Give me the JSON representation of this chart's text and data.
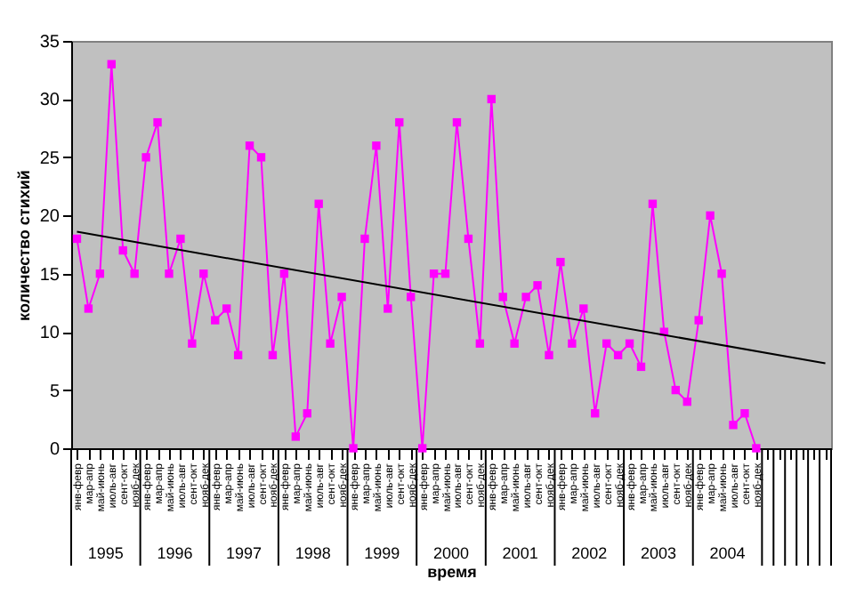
{
  "chart_data": {
    "type": "line",
    "ylabel": "количество стихий",
    "xlabel": "время",
    "categories": [
      "янв-февр",
      "мар-апр",
      "май-июнь",
      "июль-авг",
      "сент-окт",
      "нояб-дек",
      "янв-февр",
      "мар-апр",
      "май-июнь",
      "июль-авг",
      "сент-окт",
      "нояб-дек",
      "янв-февр",
      "мар-апр",
      "май-июнь",
      "июль-авг",
      "сент-окт",
      "нояб-дек",
      "янв-февр",
      "мар-апр",
      "май-июнь",
      "июль-авг",
      "сент-окт",
      "нояб-дек",
      "янв-февр",
      "мар-апр",
      "май-июнь",
      "июль-авг",
      "сент-окт",
      "нояб-дек",
      "янв-февр",
      "мар-апр",
      "май-июнь",
      "июль-авг",
      "сент-окт",
      "нояб-дек",
      "янв-февр",
      "мар-апр",
      "май-июнь",
      "июль-авг",
      "сент-окт",
      "нояб-дек",
      "янв-февр",
      "мар-апр",
      "май-июнь",
      "июль-авг",
      "сент-окт",
      "нояб-дек",
      "янв-февр",
      "мар-апр",
      "май-июнь",
      "июль-авг",
      "сент-окт",
      "нояб-дек",
      "янв-февр",
      "мар-апр",
      "май-июнь",
      "июль-авг",
      "сент-окт",
      "нояб-дек",
      null,
      null,
      null,
      null,
      null,
      null
    ],
    "series": [
      {
        "color": "#ff00ff",
        "marker": "square",
        "values": [
          18,
          12,
          15,
          33,
          17,
          15,
          25,
          28,
          15,
          18,
          9,
          15,
          11,
          12,
          8,
          26,
          25,
          8,
          15,
          1,
          3,
          21,
          9,
          13,
          0,
          18,
          26,
          12,
          28,
          13,
          0,
          15,
          15,
          28,
          18,
          9,
          30,
          13,
          9,
          13,
          14,
          8,
          16,
          9,
          12,
          3,
          9,
          8,
          9,
          7,
          21,
          10,
          5,
          4,
          11,
          20,
          15,
          2,
          3,
          0,
          null,
          null,
          null,
          null,
          null,
          null
        ]
      },
      {
        "type": "line",
        "color": "#000000",
        "marker": "none",
        "values": [
          18.6,
          null,
          null,
          null,
          null,
          null,
          null,
          null,
          null,
          null,
          null,
          null,
          null,
          null,
          null,
          null,
          null,
          null,
          null,
          null,
          null,
          null,
          null,
          null,
          null,
          null,
          null,
          null,
          null,
          null,
          null,
          null,
          null,
          null,
          null,
          null,
          null,
          null,
          null,
          null,
          null,
          null,
          null,
          null,
          null,
          null,
          null,
          null,
          null,
          null,
          null,
          null,
          null,
          null,
          null,
          null,
          null,
          null,
          null,
          null,
          null,
          null,
          null,
          null,
          null,
          7.3
        ]
      }
    ],
    "annotations": [
      "1995",
      "1996",
      "1997",
      "1998",
      "1999",
      "2000",
      "2001",
      "2002",
      "2003",
      "2004"
    ],
    "ylim": [
      0,
      35
    ],
    "yticks": [
      0,
      5,
      10,
      15,
      20,
      25,
      30,
      35
    ],
    "grid": false,
    "line_style": "solid"
  }
}
